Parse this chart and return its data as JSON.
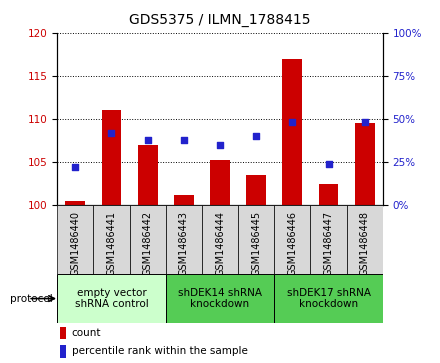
{
  "title": "GDS5375 / ILMN_1788415",
  "samples": [
    "GSM1486440",
    "GSM1486441",
    "GSM1486442",
    "GSM1486443",
    "GSM1486444",
    "GSM1486445",
    "GSM1486446",
    "GSM1486447",
    "GSM1486448"
  ],
  "counts": [
    100.5,
    111.0,
    107.0,
    101.2,
    105.2,
    103.5,
    117.0,
    102.5,
    109.5
  ],
  "percentile_ranks": [
    22,
    42,
    38,
    38,
    35,
    40,
    48,
    24,
    48
  ],
  "ylim_left": [
    100,
    120
  ],
  "ylim_right": [
    0,
    100
  ],
  "yticks_left": [
    100,
    105,
    110,
    115,
    120
  ],
  "yticks_right": [
    0,
    25,
    50,
    75,
    100
  ],
  "bar_color": "#cc0000",
  "dot_color": "#2222cc",
  "bar_bottom": 100,
  "groups": [
    {
      "label": "empty vector\nshRNA control",
      "start": 0,
      "end": 3,
      "color": "#ccffcc"
    },
    {
      "label": "shDEK14 shRNA\nknockdown",
      "start": 3,
      "end": 6,
      "color": "#55cc55"
    },
    {
      "label": "shDEK17 shRNA\nknockdown",
      "start": 6,
      "end": 9,
      "color": "#55cc55"
    }
  ],
  "legend_count_label": "count",
  "legend_pct_label": "percentile rank within the sample",
  "protocol_label": "protocol",
  "background_color": "#ffffff",
  "plot_bg": "#ffffff",
  "tick_bg": "#d8d8d8",
  "tick_label_color_left": "#cc0000",
  "tick_label_color_right": "#2222cc",
  "title_fontsize": 10,
  "tick_fontsize": 7,
  "legend_fontsize": 7.5,
  "group_fontsize": 7.5
}
